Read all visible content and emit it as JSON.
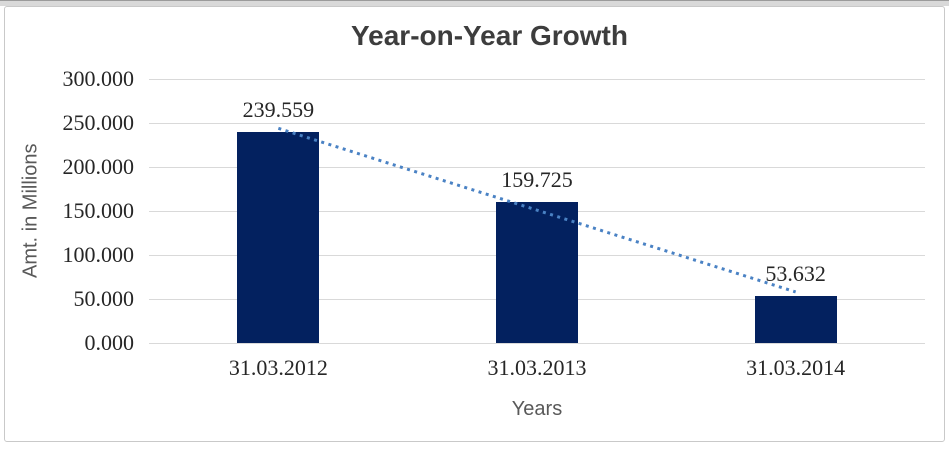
{
  "chart_data": {
    "type": "bar",
    "title": "Year-on-Year Growth",
    "xlabel": "Years",
    "ylabel": "Amt. in Millions",
    "categories": [
      "31.03.2012",
      "31.03.2013",
      "31.03.2014"
    ],
    "values": [
      239.559,
      159.725,
      53.632
    ],
    "data_labels": [
      "239.559",
      "159.725",
      "53.632"
    ],
    "y_ticks": [
      "300.000",
      "250.000",
      "200.000",
      "150.000",
      "100.000",
      "50.000",
      "0.000"
    ],
    "ylim": [
      0,
      300
    ],
    "grid": true,
    "legend": "none",
    "trendline": {
      "type": "linear",
      "style": "dotted"
    },
    "colors": {
      "bar": "#03215f",
      "trendline": "#4a82c4",
      "gridline": "#d9d9d9",
      "title_text": "#3d3d3d",
      "label_text": "#262626",
      "axis_title_text": "#595959",
      "frame_border": "#c9c9c9",
      "top_band": "#d9d9d9",
      "background": "#ffffff"
    }
  }
}
